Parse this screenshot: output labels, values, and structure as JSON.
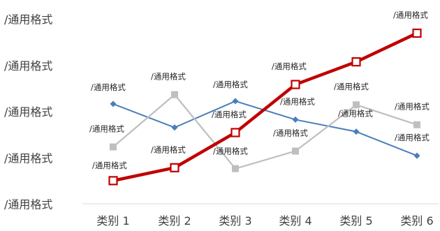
{
  "chart_data": {
    "type": "line",
    "categories": [
      "类别 1",
      "类别 2",
      "类别 3",
      "类别 4",
      "类别 5",
      "类别 6"
    ],
    "ytick_labels": [
      "/通用格式",
      "/通用格式",
      "/通用格式",
      "/通用格式",
      "/通用格式"
    ],
    "ylim": [
      0,
      4
    ],
    "grid": false,
    "legend": "none",
    "series": [
      {
        "color": "#4a7ebb",
        "marker": "diamond",
        "values": [
          2.16,
          1.65,
          2.22,
          1.82,
          1.56,
          1.04
        ],
        "labels": [
          "",
          "",
          "/通用格式",
          "/通用格式",
          "/通用格式",
          "/通用格式"
        ]
      },
      {
        "color": "#bfbfbf",
        "marker": "square",
        "values": [
          1.23,
          2.36,
          0.76,
          1.14,
          2.14,
          1.71
        ],
        "labels": [
          "/通用格式",
          "/通用格式",
          "/通用格式",
          "/通用格式",
          "/通用格式",
          "/通用格式"
        ]
      },
      {
        "color": "#c00000",
        "marker": "square-open",
        "values": [
          0.5,
          0.78,
          1.54,
          2.58,
          3.07,
          3.69
        ],
        "labels": [
          "/通用格式",
          "/通用格式",
          "/通用格式",
          "/通用格式",
          "",
          "/通用格式"
        ]
      }
    ],
    "first_series_first_label": "/通用格式"
  }
}
